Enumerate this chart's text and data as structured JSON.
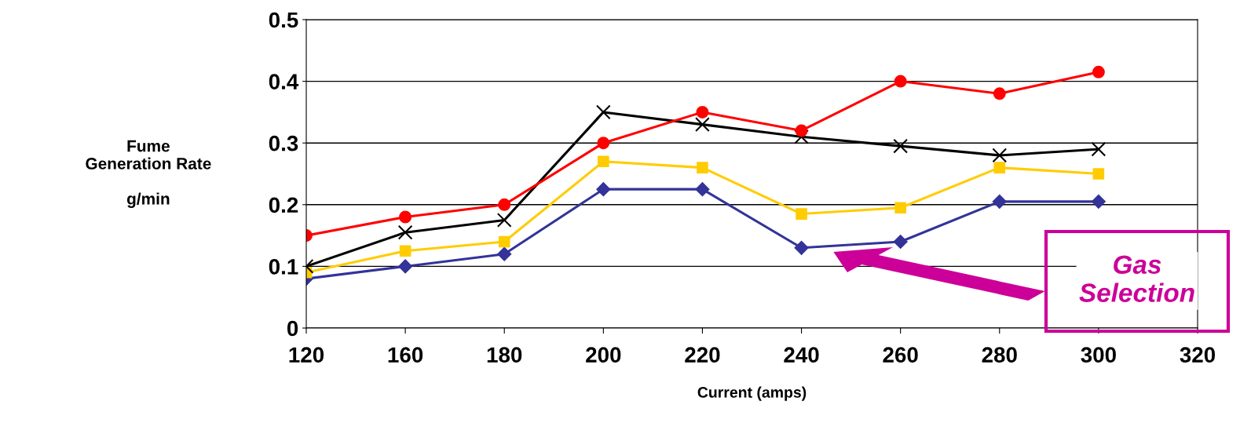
{
  "chart_data": {
    "type": "line",
    "xlabel": "Current (amps)",
    "ylabel": "Fume\nGeneration Rate\n\ng/min",
    "categories": [
      "120",
      "160",
      "180",
      "200",
      "220",
      "240",
      "260",
      "280",
      "300",
      "320"
    ],
    "ylim": [
      0,
      0.5
    ],
    "yticks": [
      {
        "value": 0,
        "label": "0"
      },
      0.1,
      0.2,
      0.3,
      0.4,
      0.5
    ],
    "grid": "y",
    "legend": false,
    "series": [
      {
        "color": "#ff0000",
        "marker": "circle",
        "values": [
          0.15,
          0.18,
          0.2,
          0.3,
          0.35,
          0.32,
          0.4,
          0.38,
          0.415,
          null
        ]
      },
      {
        "color": "#000000",
        "marker": "cross",
        "values": [
          0.1,
          0.155,
          0.175,
          0.35,
          0.33,
          0.31,
          0.295,
          0.28,
          0.29,
          null
        ]
      },
      {
        "color": "#ffcc00",
        "marker": "square",
        "values": [
          0.09,
          0.125,
          0.14,
          0.27,
          0.26,
          0.185,
          0.195,
          0.26,
          0.25,
          null
        ]
      },
      {
        "color": "#333399",
        "marker": "diamond",
        "values": [
          0.08,
          0.1,
          0.12,
          0.225,
          0.225,
          0.13,
          0.14,
          0.205,
          0.205,
          null
        ]
      }
    ],
    "annotations": [
      "Gas\nSelection"
    ]
  }
}
